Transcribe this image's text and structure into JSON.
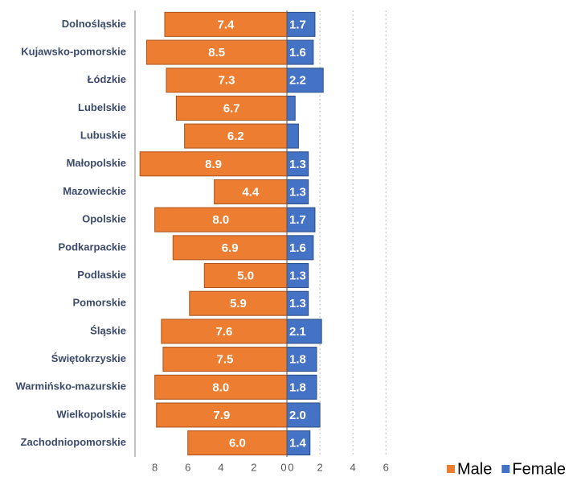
{
  "chart_data": {
    "type": "butterfly-bar",
    "categories": [
      "Dolnośląskie",
      "Kujawsko-pomorskie",
      "Łódzkie",
      "Lubelskie",
      "Lubuskie",
      "Małopolskie",
      "Mazowieckie",
      "Opolskie",
      "Podkarpackie",
      "Podlaskie",
      "Pomorskie",
      "Śląskie",
      "Świętokrzyskie",
      "Warmińsko-mazurskie",
      "Wielkopolskie",
      "Zachodniopomorskie"
    ],
    "series": [
      {
        "name": "Male",
        "color": "#ED7D31",
        "side": "left",
        "values": [
          7.4,
          8.5,
          7.3,
          6.7,
          6.2,
          8.9,
          4.4,
          8.0,
          6.9,
          5.0,
          5.9,
          7.6,
          7.5,
          8.0,
          7.9,
          6.0
        ],
        "value_labels": [
          "7.4",
          "8.5",
          "7.3",
          "6.7",
          "6.2",
          "8.9",
          "4.4",
          "8.0",
          "6.9",
          "5.0",
          "5.9",
          "7.6",
          "7.5",
          "8.0",
          "7.9",
          "6.0"
        ]
      },
      {
        "name": "Female",
        "color": "#4472C4",
        "side": "right",
        "values": [
          1.7,
          1.6,
          2.2,
          0.5,
          0.7,
          1.3,
          1.3,
          1.7,
          1.6,
          1.3,
          1.3,
          2.1,
          1.8,
          1.8,
          2.0,
          1.4
        ],
        "value_labels": [
          "1.7",
          "1.6",
          "2.2",
          null,
          null,
          "1.3",
          "1.3",
          "1.7",
          "1.6",
          "1.3",
          "1.3",
          "2.1",
          "1.8",
          "1.8",
          "2.0",
          "1.4"
        ]
      }
    ],
    "xlim_left": [
      0,
      9.2
    ],
    "xticks_left": [
      8,
      6,
      4,
      2,
      0
    ],
    "xlim_right": [
      0,
      8
    ],
    "xticks_right": [
      0,
      2,
      4,
      6
    ],
    "grid": true,
    "legend": "bottom-right"
  }
}
